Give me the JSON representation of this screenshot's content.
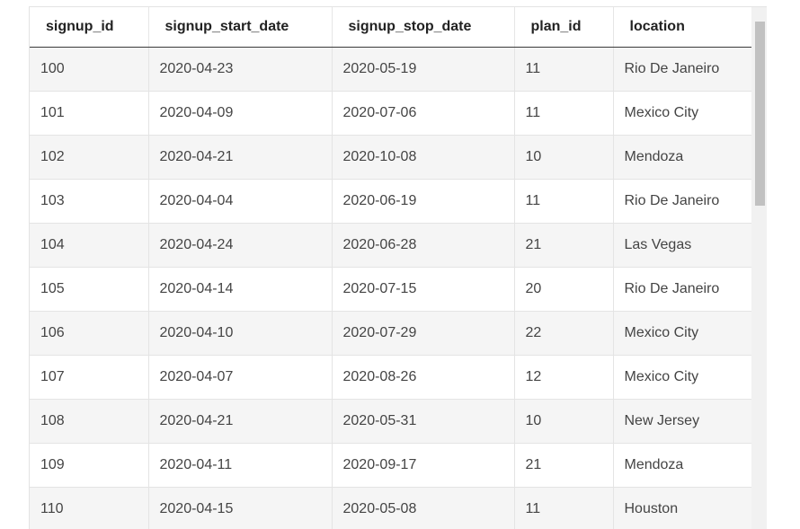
{
  "table": {
    "columns": [
      "signup_id",
      "signup_start_date",
      "signup_stop_date",
      "plan_id",
      "location"
    ],
    "rows": [
      [
        "100",
        "2020-04-23",
        "2020-05-19",
        "11",
        "Rio De Janeiro"
      ],
      [
        "101",
        "2020-04-09",
        "2020-07-06",
        "11",
        "Mexico City"
      ],
      [
        "102",
        "2020-04-21",
        "2020-10-08",
        "10",
        "Mendoza"
      ],
      [
        "103",
        "2020-04-04",
        "2020-06-19",
        "11",
        "Rio De Janeiro"
      ],
      [
        "104",
        "2020-04-24",
        "2020-06-28",
        "21",
        "Las Vegas"
      ],
      [
        "105",
        "2020-04-14",
        "2020-07-15",
        "20",
        "Rio De Janeiro"
      ],
      [
        "106",
        "2020-04-10",
        "2020-07-29",
        "22",
        "Mexico City"
      ],
      [
        "107",
        "2020-04-07",
        "2020-08-26",
        "12",
        "Mexico City"
      ],
      [
        "108",
        "2020-04-21",
        "2020-05-31",
        "10",
        "New Jersey"
      ],
      [
        "109",
        "2020-04-11",
        "2020-09-17",
        "21",
        "Mendoza"
      ],
      [
        "110",
        "2020-04-15",
        "2020-05-08",
        "11",
        "Houston"
      ]
    ]
  }
}
